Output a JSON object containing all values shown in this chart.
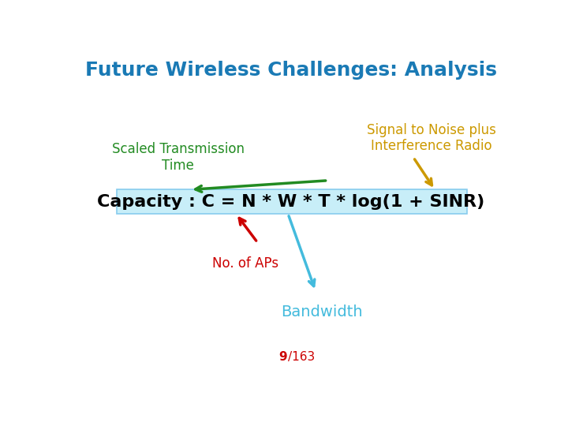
{
  "title": "Future Wireless Challenges: Analysis",
  "title_color": "#1a7ab5",
  "title_fontsize": 18,
  "equation": "Capacity : C = N * W * T * log(1 + SINR)",
  "equation_fontsize": 16,
  "equation_box_facecolor": "#c8eef8",
  "equation_box_edgecolor": "#88ccee",
  "equation_text_color": "#000000",
  "label_scaled": "Scaled Transmission\nTime",
  "label_scaled_color": "#228B22",
  "label_scaled_fontsize": 12,
  "label_sinr": "Signal to Noise plus\nInterference Radio",
  "label_sinr_color": "#cc9900",
  "label_sinr_fontsize": 12,
  "label_naps": "No. of APs",
  "label_naps_color": "#cc0000",
  "label_naps_fontsize": 12,
  "label_bw": "Bandwidth",
  "label_bw_color": "#44bbdd",
  "label_bw_fontsize": 14,
  "page_text_bold": "9",
  "page_text_normal": "/163",
  "page_color": "#cc0000",
  "page_fontsize": 11,
  "bg_color": "#ffffff",
  "arrow_lw": 2.0,
  "arrow_ms": 14
}
